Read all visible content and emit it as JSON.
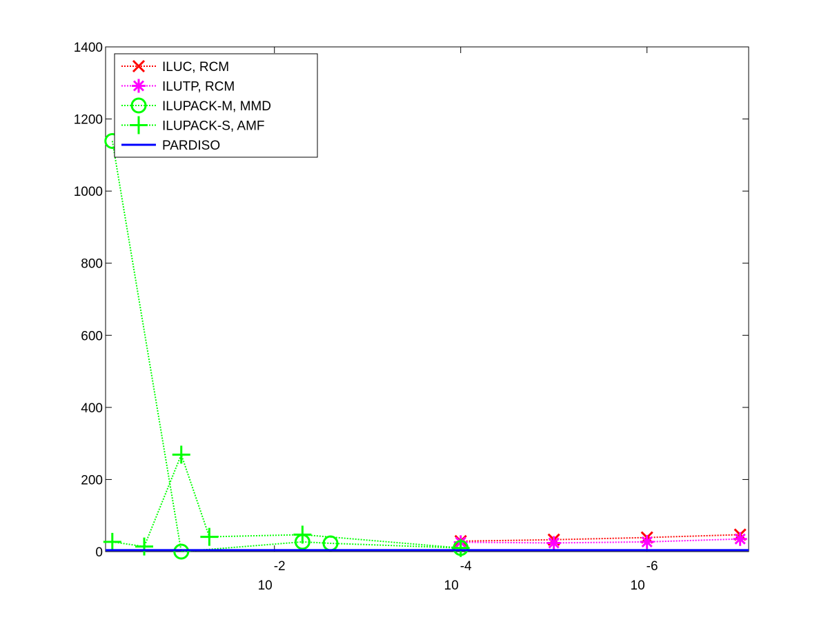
{
  "chart_data": {
    "type": "line",
    "x_scale": "log",
    "x_reversed": true,
    "xlim": [
      0.65,
      8.1e-08
    ],
    "ylim": [
      0,
      1400
    ],
    "xticks": [
      {
        "value": 0.01,
        "label": "10",
        "exponent": "-2"
      },
      {
        "value": 0.0001,
        "label": "10",
        "exponent": "-4"
      },
      {
        "value": 1e-06,
        "label": "10",
        "exponent": "-6"
      }
    ],
    "yticks": [
      0,
      200,
      400,
      600,
      800,
      1000,
      1200,
      1400
    ],
    "legend": "upper left",
    "series": [
      {
        "name": "ILUC, RCM",
        "color": "#ff0000",
        "marker": "x",
        "linestyle": "dotted",
        "x": [
          0.0001,
          1e-05,
          1e-06,
          1e-07
        ],
        "values": [
          29,
          33,
          39,
          47
        ]
      },
      {
        "name": "ILUTP, RCM",
        "color": "#ff00ff",
        "marker": "asterisk",
        "linestyle": "dotted",
        "x": [
          0.0001,
          1e-05,
          1e-06,
          1e-07
        ],
        "values": [
          26,
          24,
          27,
          35
        ]
      },
      {
        "name": "ILUPACK-M, MMD",
        "color": "#00ff00",
        "marker": "circle",
        "linestyle": "dotted",
        "x": [
          0.55,
          0.1,
          0.005,
          0.0025,
          0.0001
        ],
        "values": [
          1139,
          0,
          27,
          23,
          10
        ]
      },
      {
        "name": "ILUPACK-S, AMF",
        "color": "#00ff00",
        "marker": "plus",
        "linestyle": "dotted",
        "x": [
          0.55,
          0.25,
          0.1,
          0.05,
          0.005,
          0.0001
        ],
        "values": [
          27,
          14,
          269,
          41,
          47,
          10
        ]
      },
      {
        "name": "PARDISO",
        "color": "#0000ff",
        "marker": "none",
        "linestyle": "solid",
        "x": [
          0.65,
          8.1e-08
        ],
        "values": [
          4,
          4
        ]
      }
    ]
  }
}
